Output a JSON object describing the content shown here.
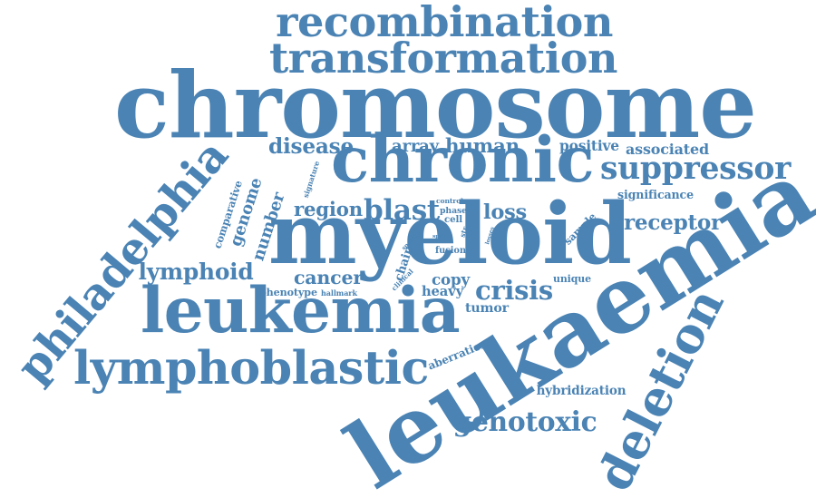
{
  "color": "#4a83b4",
  "words": [
    "recombination",
    "transformation",
    "chromosome",
    "chronic",
    "myeloid",
    "leukaemia",
    "leukemia",
    "philadelphia",
    "lymphoblastic",
    "deletion",
    "suppressor",
    "disease",
    "array",
    "human",
    "positive",
    "associated",
    "significance",
    "receptor",
    "genome",
    "comparative",
    "number",
    "signature",
    "region",
    "blast",
    "control",
    "phase",
    "cell",
    "loss",
    "lymphoid",
    "cancer",
    "copy",
    "crisis",
    "phenotype",
    "hallmark",
    "heavy",
    "tumor",
    "fusion",
    "specific",
    "chain",
    "clinical",
    "spot",
    "str",
    "losses",
    "sample",
    "unique",
    "aberration",
    "hybridization",
    "genotoxic"
  ]
}
